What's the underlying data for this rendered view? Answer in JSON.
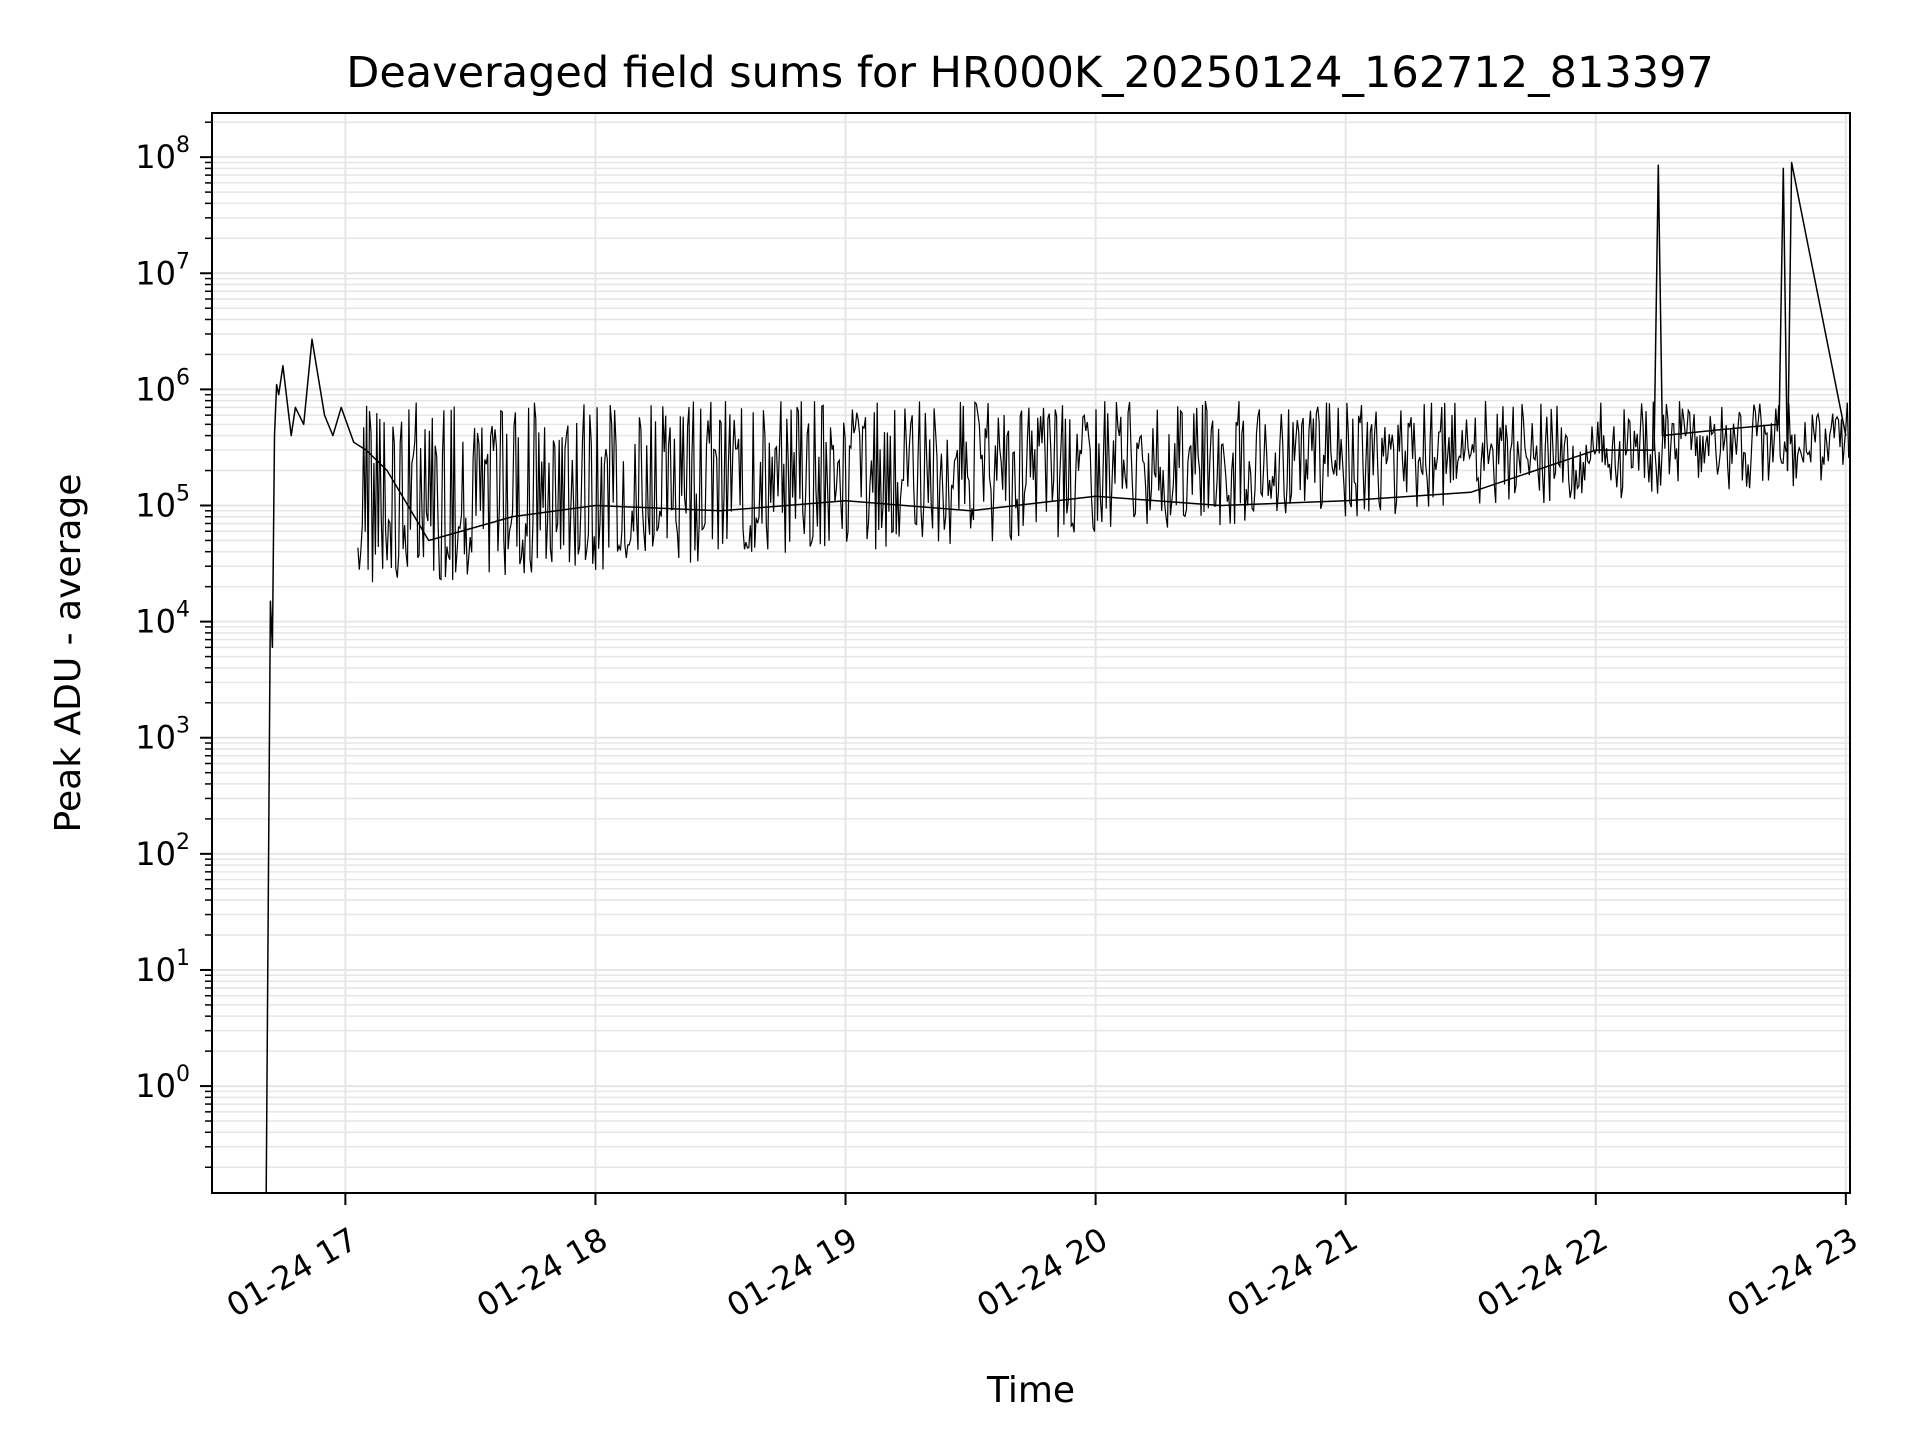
{
  "chart_data": {
    "type": "line",
    "title": "Deaveraged field sums for HR000K_20250124_162712_813397",
    "xlabel": "Time",
    "ylabel": "Peak ADU - average",
    "yscale": "log",
    "grid": true,
    "line_color": "#000000",
    "grid_color": "#e6e6e6",
    "xlim": [
      "01-24 16:28",
      "01-24 23:01"
    ],
    "ylim": [
      0.12,
      240000000
    ],
    "x_ticks": [
      "01-24 17",
      "01-24 18",
      "01-24 19",
      "01-24 20",
      "01-24 21",
      "01-24 22",
      "01-24 23"
    ],
    "y_ticks": [
      {
        "base": "10",
        "exp": "0",
        "value": 1
      },
      {
        "base": "10",
        "exp": "1",
        "value": 10
      },
      {
        "base": "10",
        "exp": "2",
        "value": 100
      },
      {
        "base": "10",
        "exp": "3",
        "value": 1000
      },
      {
        "base": "10",
        "exp": "4",
        "value": 10000
      },
      {
        "base": "10",
        "exp": "5",
        "value": 100000
      },
      {
        "base": "10",
        "exp": "6",
        "value": 1000000
      },
      {
        "base": "10",
        "exp": "7",
        "value": 10000000
      },
      {
        "base": "10",
        "exp": "8",
        "value": 100000000
      }
    ],
    "series": [
      {
        "x": [
          "01-24 16:41",
          "01-24 16:42",
          "01-24 16:42:30",
          "01-24 16:43",
          "01-24 16:43:30",
          "01-24 16:44",
          "01-24 16:45",
          "01-24 16:47",
          "01-24 16:48",
          "01-24 16:50",
          "01-24 16:52",
          "01-24 16:55",
          "01-24 16:57",
          "01-24 16:59",
          "01-24 17:02",
          "01-24 17:05",
          "01-24 17:10",
          "01-24 17:15",
          "01-24 17:20",
          "01-24 17:40",
          "01-24 18:00",
          "01-24 18:30",
          "01-24 19:00",
          "01-24 19:30",
          "01-24 20:00",
          "01-24 20:30",
          "01-24 21:00",
          "01-24 21:30",
          "01-24 22:00",
          "01-24 22:14",
          "01-24 22:15",
          "01-24 22:16",
          "01-24 22:30",
          "01-24 22:44",
          "01-24 22:45",
          "01-24 22:46",
          "01-24 22:47",
          "01-24 23:00"
        ],
        "y": [
          0.12,
          15000,
          6000,
          400000,
          1100000,
          900000,
          1600000,
          400000,
          700000,
          500000,
          2700000,
          600000,
          400000,
          700000,
          350000,
          300000,
          200000,
          100000,
          50000,
          80000,
          100000,
          90000,
          110000,
          90000,
          120000,
          100000,
          110000,
          130000,
          300000,
          300000,
          85000000,
          400000,
          450000,
          500000,
          80000000,
          200000,
          90000000,
          400000
        ]
      }
    ]
  }
}
